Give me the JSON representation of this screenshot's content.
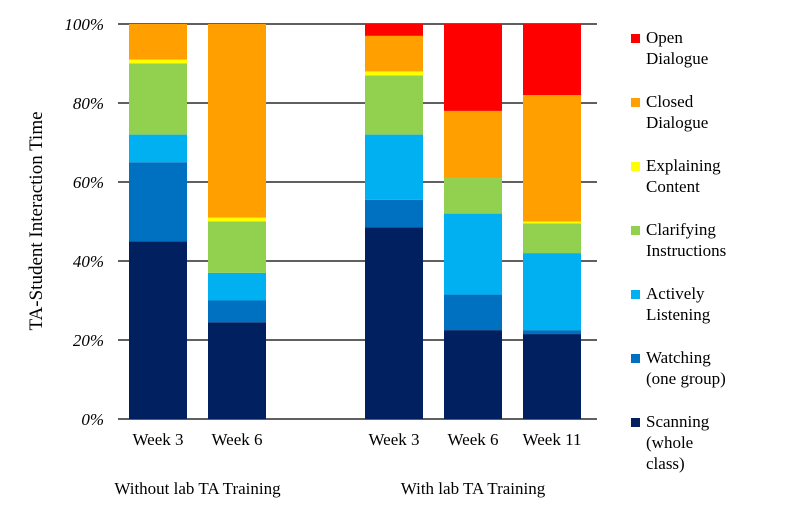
{
  "chart_data": {
    "type": "bar",
    "stacked": true,
    "ylabel": "TA-Student Interaction Time",
    "ylim": [
      0,
      100
    ],
    "yticks": [
      "0%",
      "20%",
      "40%",
      "60%",
      "80%",
      "100%"
    ],
    "grid": true,
    "legend_position": "right",
    "categories": [
      "Week 3",
      "Week 6",
      "Week 3",
      "Week 6",
      "Week 11"
    ],
    "groups": [
      {
        "label": "Without lab TA Training",
        "categories": [
          0,
          1
        ]
      },
      {
        "label": "With lab TA Training",
        "categories": [
          2,
          3,
          4
        ]
      }
    ],
    "series": [
      {
        "name": "Scanning (whole class)",
        "label_lines": [
          "Scanning",
          "(whole",
          "class)"
        ],
        "color": "#002060",
        "values": [
          45,
          24.5,
          48.5,
          22.5,
          21.5
        ]
      },
      {
        "name": "Watching (one group)",
        "label_lines": [
          "Watching",
          "(one group)"
        ],
        "color": "#0070C0",
        "values": [
          20,
          5.5,
          7,
          9,
          1
        ]
      },
      {
        "name": "Actively Listening",
        "label_lines": [
          "Actively",
          "Listening"
        ],
        "color": "#00B0F0",
        "values": [
          7,
          7,
          16.5,
          20.5,
          19.5
        ]
      },
      {
        "name": "Clarifying Instructions",
        "label_lines": [
          "Clarifying",
          "Instructions"
        ],
        "color": "#92D050",
        "values": [
          18,
          13,
          15,
          9,
          7.5
        ]
      },
      {
        "name": "Explaining Content",
        "label_lines": [
          "Explaining",
          "Content"
        ],
        "color": "#FFFF00",
        "values": [
          1,
          1,
          1,
          0,
          0.5
        ]
      },
      {
        "name": "Closed Dialogue",
        "label_lines": [
          "Closed",
          "Dialogue"
        ],
        "color": "#FF9F00",
        "values": [
          9,
          49,
          9,
          17,
          32
        ]
      },
      {
        "name": "Open Dialogue",
        "label_lines": [
          "Open",
          "Dialogue"
        ],
        "color": "#FF0000",
        "values": [
          0,
          0,
          3,
          22,
          18
        ]
      }
    ]
  }
}
